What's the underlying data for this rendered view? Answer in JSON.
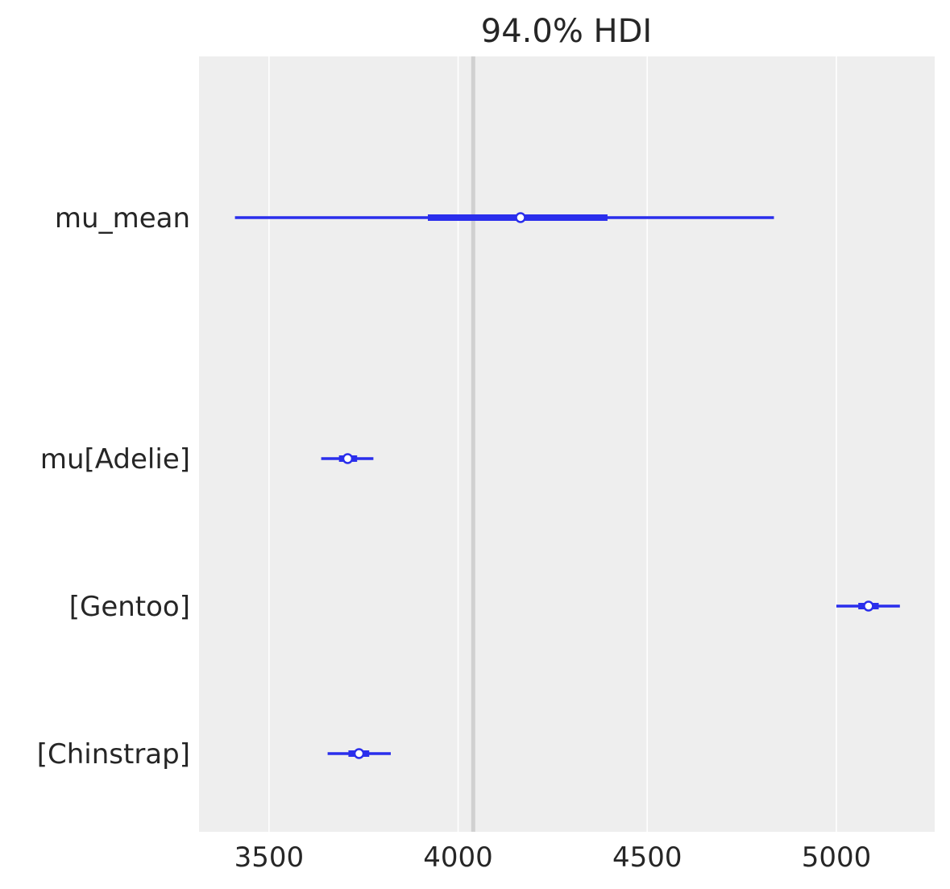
{
  "chart_data": {
    "type": "forest",
    "title": "94.0% HDI",
    "xlim": [
      3315,
      5260
    ],
    "xticks": [
      3500,
      4000,
      4500,
      5000
    ],
    "grid": true,
    "reference_line": 4040,
    "colors": {
      "series": "#2a2eec",
      "background": "#eeeeee",
      "grid": "#ffffff",
      "reference": "#d0d0d0"
    },
    "rows": [
      {
        "label": "mu_mean",
        "mean": 4165,
        "hdi_94": [
          3410,
          4835
        ],
        "iqr": [
          3920,
          4395
        ]
      },
      {
        "label": "mu[Adelie]",
        "mean": 3708,
        "hdi_94": [
          3638,
          3776
        ],
        "iqr": [
          3685,
          3733
        ]
      },
      {
        "label": "[Gentoo]",
        "mean": 5085,
        "hdi_94": [
          5000,
          5168
        ],
        "iqr": [
          5058,
          5112
        ]
      },
      {
        "label": "[Chinstrap]",
        "mean": 3738,
        "hdi_94": [
          3655,
          3822
        ],
        "iqr": [
          3710,
          3765
        ]
      }
    ]
  }
}
